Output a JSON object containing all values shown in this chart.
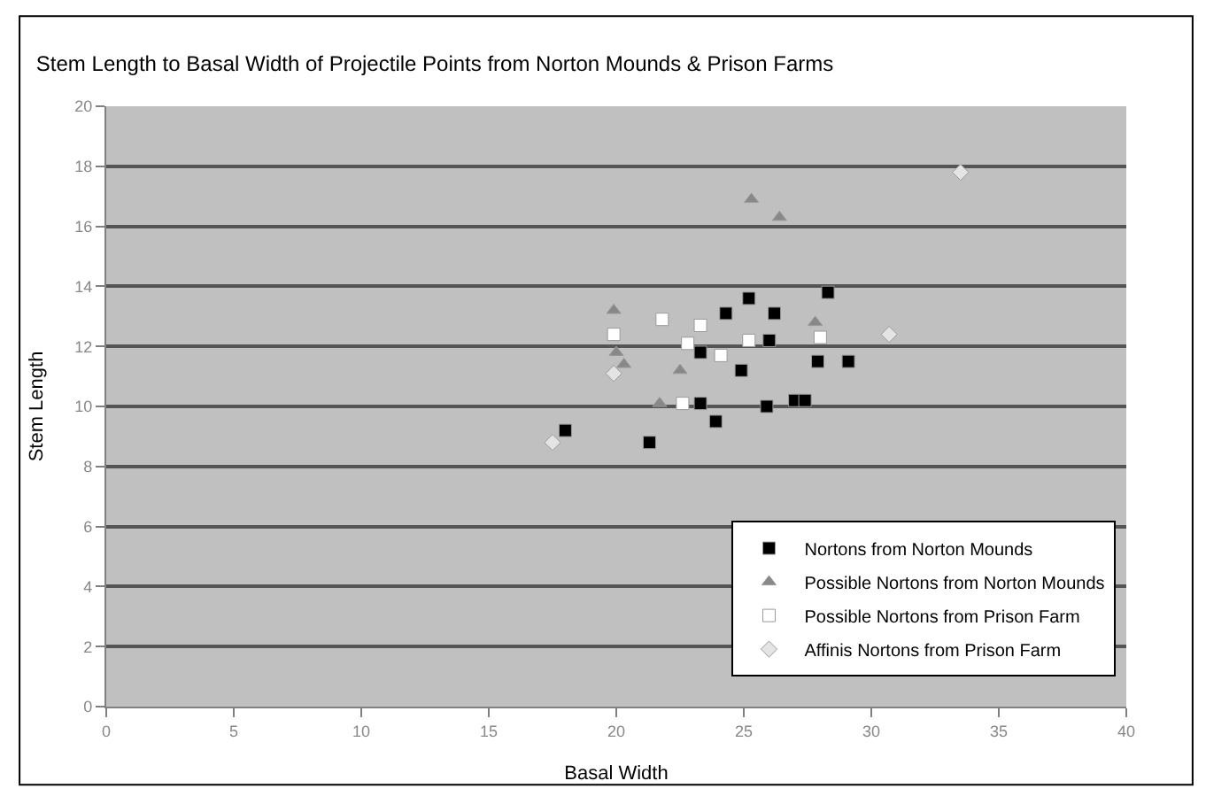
{
  "chart_data": {
    "type": "scatter",
    "title": "Stem Length to Basal Width of Projectile Points from Norton Mounds & Prison Farms",
    "xlabel": "Basal Width",
    "ylabel": "Stem Length",
    "xlim": [
      0,
      40
    ],
    "xticks": [
      0,
      5,
      10,
      15,
      20,
      25,
      30,
      35,
      40
    ],
    "ylim": [
      0,
      20
    ],
    "yticks": [
      0,
      2,
      4,
      6,
      8,
      10,
      12,
      14,
      16,
      18,
      20
    ],
    "grid": "y",
    "legend": "bottom right",
    "series": [
      {
        "name": "Nortons from Norton Mounds",
        "color": "#000000",
        "marker": "square",
        "x": [
          18.0,
          21.3,
          23.3,
          24.3,
          25.2,
          26.2,
          26.0,
          24.9,
          23.9,
          25.9,
          27.0,
          27.4,
          27.9,
          29.1,
          28.3,
          23.3
        ],
        "values": [
          9.2,
          8.8,
          11.8,
          13.1,
          13.6,
          13.1,
          12.2,
          11.2,
          9.5,
          10.0,
          10.2,
          10.2,
          11.5,
          11.5,
          13.8,
          10.1
        ]
      },
      {
        "name": "Possible Nortons from Norton Mounds",
        "color": "#888888",
        "marker": "triangle",
        "x": [
          25.3,
          26.4,
          19.9,
          20.0,
          20.3,
          22.5,
          27.8,
          21.7
        ],
        "values": [
          16.9,
          16.3,
          13.2,
          11.8,
          11.4,
          11.2,
          12.8,
          10.1
        ]
      },
      {
        "name": "Possible Nortons from Prison Farm",
        "color": "#ffffff",
        "marker": "square",
        "x": [
          19.9,
          21.8,
          23.3,
          22.8,
          24.1,
          25.2,
          28.0,
          22.6
        ],
        "values": [
          12.4,
          12.9,
          12.7,
          12.1,
          11.7,
          12.2,
          12.3,
          10.1
        ]
      },
      {
        "name": "Affinis Nortons from Prison Farm",
        "color": "#e4e4e4",
        "marker": "diamond",
        "x": [
          30.7,
          19.9,
          17.5,
          33.5
        ],
        "values": [
          12.4,
          11.1,
          8.8,
          17.8
        ]
      }
    ]
  }
}
